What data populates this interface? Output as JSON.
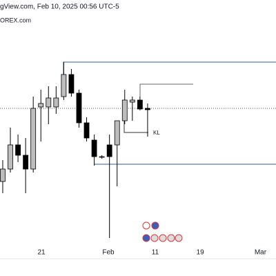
{
  "header": {
    "line1": "gView.com, Feb 10, 2025 00:56 UTC-5",
    "line2": "OREX.com"
  },
  "annotations": {
    "kl": "KL"
  },
  "chart_data": {
    "type": "candlestick",
    "x": [
      0,
      1,
      2,
      3,
      4,
      5,
      6,
      7,
      8,
      9,
      10,
      11,
      12,
      13,
      14,
      15,
      16,
      17,
      18,
      19
    ],
    "open": [
      112,
      130,
      165,
      150,
      130,
      220,
      220,
      220,
      235,
      267,
      240,
      197,
      172,
      148,
      165,
      165,
      200,
      227,
      230,
      218
    ],
    "high": [
      143,
      190,
      180,
      175,
      235,
      245,
      250,
      250,
      285,
      275,
      245,
      205,
      180,
      150,
      180,
      200,
      245,
      235,
      235,
      225
    ],
    "low": [
      95,
      125,
      140,
      95,
      125,
      170,
      195,
      210,
      230,
      235,
      190,
      170,
      135,
      145,
      30,
      105,
      195,
      200,
      215,
      177
    ],
    "close": [
      130,
      165,
      150,
      130,
      218,
      225,
      233,
      233,
      267,
      240,
      197,
      175,
      148,
      148,
      148,
      200,
      230,
      230,
      217,
      216
    ],
    "up_color": "#bdbdbd",
    "down_color": "#000000",
    "xlim": [
      -0.36,
      35.84
    ],
    "ylim": [
      0,
      375
    ],
    "xticks": [
      {
        "value": 5.07,
        "label": "21"
      },
      {
        "value": 13.85,
        "label": "Feb"
      },
      {
        "value": 20,
        "label": "11"
      },
      {
        "value": 25.9,
        "label": "19"
      },
      {
        "value": 33.8,
        "label": "Mar"
      }
    ]
  }
}
